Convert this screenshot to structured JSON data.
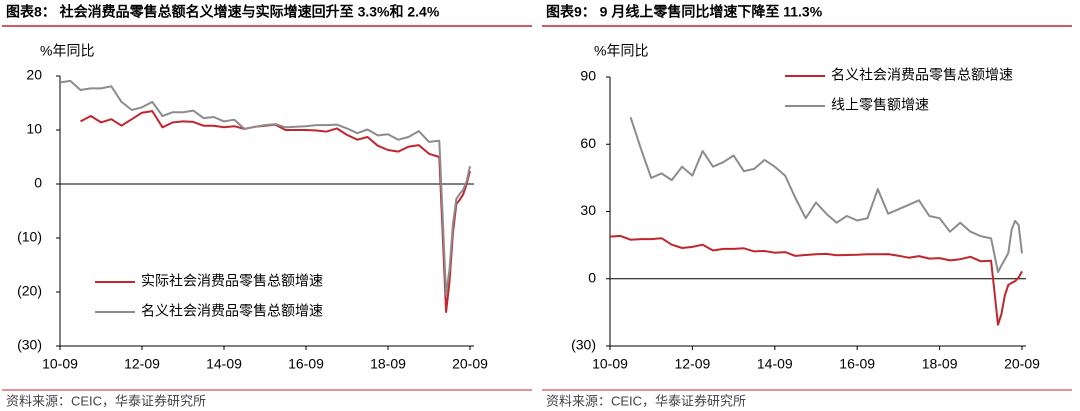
{
  "chart_data": [
    {
      "type": "line",
      "title": "图表8：  社会消费品零售总额名义增速与实际增速回升至 3.3%和 2.4%",
      "y_label": "%年同比",
      "source": "资料来源：CEIC，华泰证券研究所",
      "legend": "lower left",
      "xlim": [
        "10-09",
        "20-09"
      ],
      "xticks": [
        "10-09",
        "12-09",
        "14-09",
        "16-09",
        "18-09",
        "20-09"
      ],
      "ylim": [
        -30,
        20
      ],
      "yticks": [
        20,
        10,
        0,
        {
          "value": -10,
          "label": "(10)"
        },
        {
          "value": -20,
          "label": "(20)"
        },
        {
          "value": -30,
          "label": "(30)"
        }
      ],
      "x": [
        "10-09",
        "10-12",
        "11-03",
        "11-06",
        "11-09",
        "11-12",
        "12-03",
        "12-06",
        "12-09",
        "12-12",
        "13-03",
        "13-06",
        "13-09",
        "13-12",
        "14-03",
        "14-06",
        "14-09",
        "14-12",
        "15-03",
        "15-06",
        "15-09",
        "15-12",
        "16-03",
        "16-06",
        "16-09",
        "16-12",
        "17-03",
        "17-06",
        "17-09",
        "17-12",
        "18-03",
        "18-06",
        "18-09",
        "18-12",
        "19-03",
        "19-06",
        "19-09",
        "19-12",
        "20-02",
        "20-03",
        "20-04",
        "20-05",
        "20-06",
        "20-07",
        "20-08",
        "20-09"
      ],
      "series": [
        {
          "name": "实际社会消费品零售总额增速",
          "color": "#c0262d",
          "values": [
            null,
            null,
            11.6,
            12.6,
            11.4,
            12.0,
            10.8,
            12.0,
            13.2,
            13.5,
            10.5,
            11.4,
            11.6,
            11.5,
            10.8,
            10.8,
            10.5,
            10.7,
            10.2,
            10.6,
            10.8,
            11.0,
            10.0,
            10.0,
            10.0,
            9.9,
            9.7,
            10.3,
            9.1,
            8.2,
            8.7,
            7.1,
            6.3,
            6.0,
            6.9,
            7.2,
            5.6,
            5.0,
            -23.7,
            -18.1,
            -9.1,
            -3.7,
            -2.9,
            -1.9,
            0.0,
            2.4
          ]
        },
        {
          "name": "名义社会消费品零售总额增速",
          "color": "#8c8c8c",
          "values": [
            18.8,
            19.1,
            17.4,
            17.7,
            17.7,
            18.1,
            15.2,
            13.7,
            14.2,
            15.2,
            12.6,
            13.3,
            13.3,
            13.6,
            12.2,
            12.4,
            11.6,
            11.9,
            10.2,
            10.6,
            10.9,
            11.1,
            10.5,
            10.6,
            10.7,
            10.9,
            10.9,
            11.0,
            10.3,
            9.4,
            10.1,
            9.0,
            9.2,
            8.2,
            8.7,
            9.8,
            7.8,
            8.0,
            -20.5,
            -15.8,
            -7.5,
            -2.8,
            -1.8,
            -1.1,
            0.5,
            3.3
          ]
        }
      ]
    },
    {
      "type": "line",
      "title": "图表9：  9 月线上零售同比增速下降至 11.3%",
      "y_label": "%年同比",
      "source": "资料来源：CEIC，华泰证券研究所",
      "legend": "upper right",
      "xlim": [
        "10-09",
        "20-09"
      ],
      "xticks": [
        "10-09",
        "12-09",
        "14-09",
        "16-09",
        "18-09",
        "20-09"
      ],
      "ylim": [
        -30,
        90
      ],
      "yticks": [
        90,
        60,
        30,
        0,
        {
          "value": -30,
          "label": "(30)"
        }
      ],
      "x": [
        "10-09",
        "10-12",
        "11-03",
        "11-06",
        "11-09",
        "11-12",
        "12-03",
        "12-06",
        "12-09",
        "12-12",
        "13-03",
        "13-06",
        "13-09",
        "13-12",
        "14-03",
        "14-06",
        "14-09",
        "14-12",
        "15-03",
        "15-06",
        "15-09",
        "15-12",
        "16-03",
        "16-06",
        "16-09",
        "16-12",
        "17-03",
        "17-06",
        "17-09",
        "17-12",
        "18-03",
        "18-06",
        "18-09",
        "18-12",
        "19-03",
        "19-06",
        "19-09",
        "19-12",
        "20-02",
        "20-03",
        "20-04",
        "20-05",
        "20-06",
        "20-07",
        "20-08",
        "20-09"
      ],
      "series": [
        {
          "name": "名义社会消费品零售总额增速",
          "color": "#c0262d",
          "values": [
            18.8,
            19.1,
            17.4,
            17.7,
            17.7,
            18.1,
            15.2,
            13.7,
            14.2,
            15.2,
            12.6,
            13.3,
            13.3,
            13.6,
            12.2,
            12.4,
            11.6,
            11.9,
            10.2,
            10.6,
            10.9,
            11.1,
            10.5,
            10.6,
            10.7,
            10.9,
            10.9,
            11.0,
            10.3,
            9.4,
            10.1,
            9.0,
            9.2,
            8.2,
            8.7,
            9.8,
            7.8,
            8.0,
            -20.5,
            -15.8,
            -7.5,
            -2.8,
            -1.8,
            -1.1,
            0.5,
            3.3
          ]
        },
        {
          "name": "线上零售额增速",
          "color": "#8c8c8c",
          "values": [
            null,
            null,
            72,
            58,
            45,
            47,
            44,
            50,
            46,
            57,
            50,
            52,
            55,
            48,
            49,
            53,
            50,
            46,
            36,
            27,
            34,
            29,
            25,
            28,
            26,
            27,
            40,
            29,
            31,
            33,
            35,
            28,
            27,
            21,
            25,
            21,
            19,
            18,
            3,
            5.9,
            8.6,
            11.5,
            22,
            25.8,
            24,
            11.3
          ]
        }
      ]
    }
  ]
}
